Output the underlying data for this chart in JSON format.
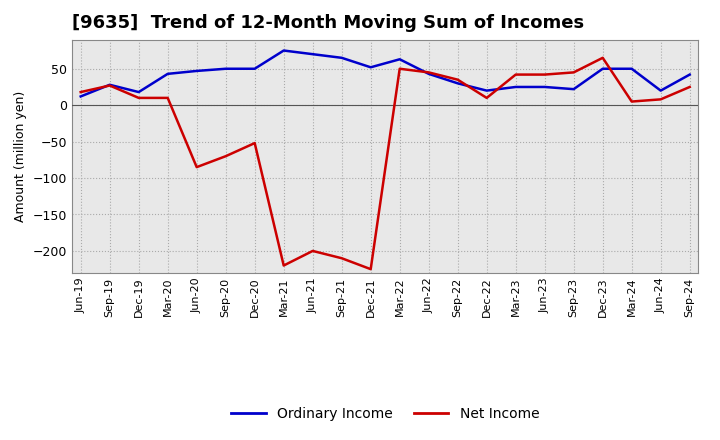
{
  "title": "[9635]  Trend of 12-Month Moving Sum of Incomes",
  "ylabel": "Amount (million yen)",
  "x_labels": [
    "Jun-19",
    "Sep-19",
    "Dec-19",
    "Mar-20",
    "Jun-20",
    "Sep-20",
    "Dec-20",
    "Mar-21",
    "Jun-21",
    "Sep-21",
    "Dec-21",
    "Mar-22",
    "Jun-22",
    "Sep-22",
    "Dec-22",
    "Mar-23",
    "Jun-23",
    "Sep-23",
    "Dec-23",
    "Mar-24",
    "Jun-24",
    "Sep-24"
  ],
  "ordinary_income": [
    12,
    28,
    18,
    43,
    47,
    50,
    50,
    75,
    70,
    65,
    52,
    63,
    43,
    30,
    20,
    25,
    25,
    22,
    50,
    50,
    20,
    42
  ],
  "net_income": [
    18,
    27,
    10,
    10,
    -85,
    -70,
    -52,
    -220,
    -200,
    -210,
    -225,
    50,
    45,
    35,
    10,
    42,
    42,
    45,
    65,
    5,
    8,
    25
  ],
  "ordinary_income_color": "#0000cc",
  "net_income_color": "#cc0000",
  "ylim": [
    -230,
    90
  ],
  "yticks": [
    -200,
    -150,
    -100,
    -50,
    0,
    50
  ],
  "background_color": "#ffffff",
  "plot_bg_color": "#e8e8e8",
  "grid_color": "#aaaaaa",
  "legend_labels": [
    "Ordinary Income",
    "Net Income"
  ],
  "line_width": 1.8,
  "title_fontsize": 13,
  "axis_fontsize": 9,
  "tick_fontsize": 8,
  "legend_fontsize": 10
}
